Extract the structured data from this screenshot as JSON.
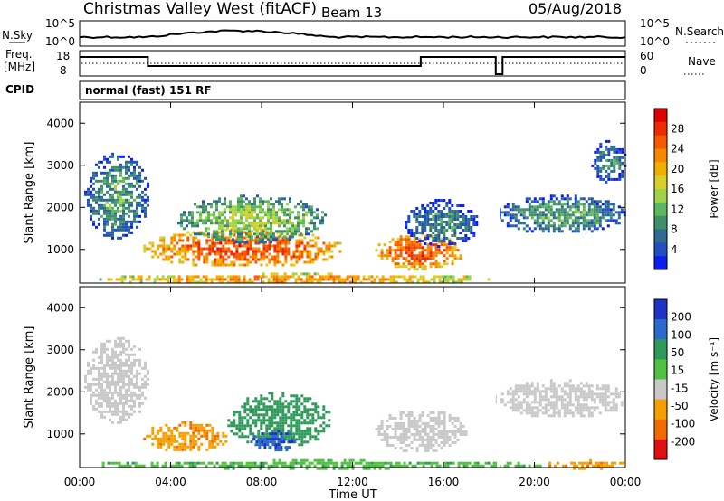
{
  "header": {
    "station": "Christmas Valley West (fitACF)",
    "beam": "Beam 13",
    "date": "05/Aug/2018"
  },
  "panels": {
    "nsky_label": "N.Sky",
    "nsearch_label": "N.Search",
    "nsky_ticks": [
      "10^5",
      "10^0"
    ],
    "nsearch_ticks": [
      "10^5",
      "10^0"
    ],
    "freq_label": "Freq.",
    "freq_unit": "[MHz]",
    "freq_ticks": [
      "18",
      "8"
    ],
    "nave_label": "Nave",
    "nave_ticks": [
      "60",
      "0"
    ],
    "cpid_label": "CPID",
    "cpid_value": "normal (fast) 151 RF"
  },
  "colors": {
    "red": "#ee1c1c",
    "orange": "#f5a000",
    "green": "#3cb43c",
    "blue": "#1e32c8",
    "gray": "#c8c8c8"
  },
  "chart_data": [
    {
      "type": "heatmap",
      "name": "power",
      "ylabel": "Slant Range [km]",
      "xlabel": "Time UT",
      "x_ticks": [
        "00:00",
        "04:00",
        "08:00",
        "12:00",
        "16:00",
        "20:00",
        "00:00"
      ],
      "y_ticks": [
        1000,
        2000,
        3000,
        4000
      ],
      "ylim": [
        200,
        4500
      ],
      "xlim_hours": [
        0,
        24
      ],
      "colorbar_label": "Power [dB]",
      "colorbar_ticks": [
        "28",
        "24",
        "20",
        "16",
        "12",
        "8",
        "4"
      ],
      "colorbar_colors": [
        "#e00000",
        "#ee2a00",
        "#f55a00",
        "#f78800",
        "#f0b000",
        "#d9cf2a",
        "#9ed548",
        "#5cb85c",
        "#3f8f6a",
        "#2f6a8f",
        "#1f4fc0",
        "#0a1ef0"
      ],
      "regions": [
        {
          "t0": 0.2,
          "t1": 3.0,
          "r0": 1300,
          "r1": 3300,
          "level": 10
        },
        {
          "t0": 2.8,
          "t1": 11.5,
          "r0": 600,
          "r1": 1500,
          "level": 26
        },
        {
          "t0": 4.3,
          "t1": 10.8,
          "r0": 1200,
          "r1": 2300,
          "level": 14
        },
        {
          "t0": 13.0,
          "t1": 16.8,
          "r0": 550,
          "r1": 1400,
          "level": 26
        },
        {
          "t0": 14.3,
          "t1": 17.5,
          "r0": 1100,
          "r1": 2200,
          "level": 8
        },
        {
          "t0": 18.3,
          "t1": 24.0,
          "r0": 1400,
          "r1": 2300,
          "level": 10
        },
        {
          "t0": 22.5,
          "t1": 24.0,
          "r0": 2600,
          "r1": 3600,
          "level": 8
        },
        {
          "t0": 0.5,
          "t1": 18.0,
          "r0": 200,
          "r1": 450,
          "level": 22
        }
      ]
    },
    {
      "type": "heatmap",
      "name": "velocity",
      "ylabel": "Slant Range [km]",
      "xlabel": "Time UT",
      "x_ticks": [
        "00:00",
        "04:00",
        "08:00",
        "12:00",
        "16:00",
        "20:00",
        "00:00"
      ],
      "y_ticks": [
        1000,
        2000,
        3000,
        4000
      ],
      "ylim": [
        200,
        4500
      ],
      "xlim_hours": [
        0,
        24
      ],
      "colorbar_label": "Velocity [m s⁻¹]",
      "colorbar_ticks": [
        "200",
        "100",
        "50",
        "15",
        "-15",
        "-50",
        "-100",
        "-200"
      ],
      "colorbar_colors": [
        "#1e32c8",
        "#2a6acc",
        "#2e9a5a",
        "#4fc040",
        "#c8c8c8",
        "#f5a000",
        "#f26a00",
        "#e01010"
      ],
      "regions": [
        {
          "t0": 0.2,
          "t1": 3.0,
          "r0": 1300,
          "r1": 3300,
          "v": 0
        },
        {
          "t0": 2.8,
          "t1": 6.5,
          "r0": 600,
          "r1": 1300,
          "v": -40
        },
        {
          "t0": 6.5,
          "t1": 11.0,
          "r0": 700,
          "r1": 2000,
          "v": 60
        },
        {
          "t0": 7.5,
          "t1": 9.5,
          "r0": 600,
          "r1": 1100,
          "v": 150
        },
        {
          "t0": 13.0,
          "t1": 17.0,
          "r0": 600,
          "r1": 1600,
          "v": 0
        },
        {
          "t0": 18.3,
          "t1": 24.0,
          "r0": 1400,
          "r1": 2300,
          "v": 0
        },
        {
          "t0": 0.5,
          "t1": 20.5,
          "r0": 200,
          "r1": 400,
          "v": 30
        },
        {
          "t0": 20.5,
          "t1": 24.0,
          "r0": 200,
          "r1": 400,
          "v": -40
        }
      ]
    }
  ]
}
